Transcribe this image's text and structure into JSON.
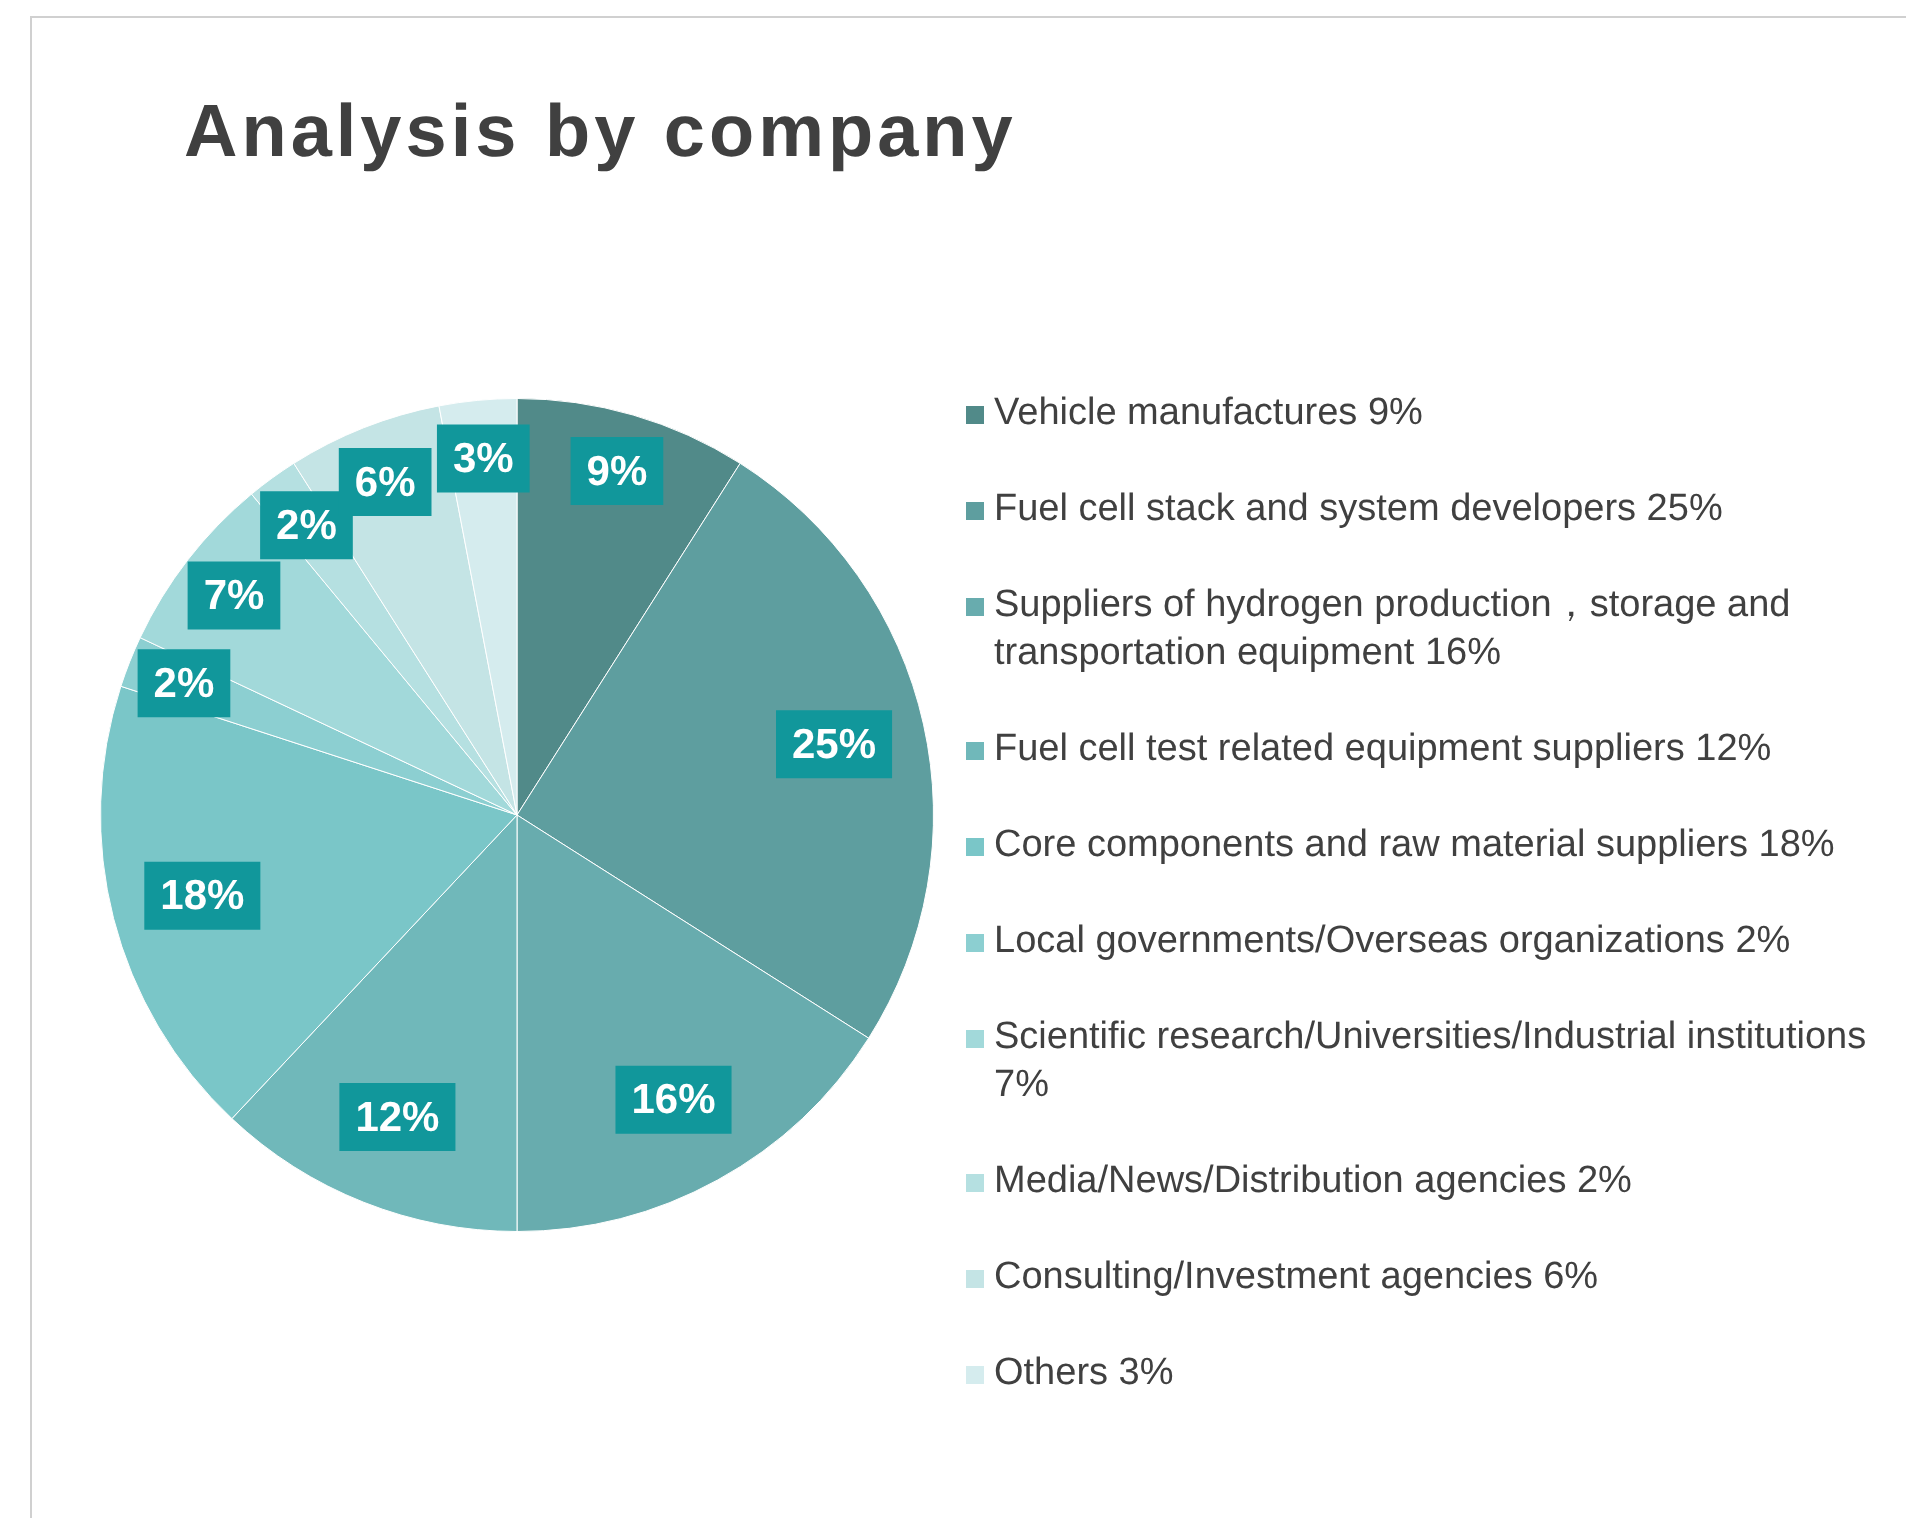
{
  "chart_data": {
    "type": "pie",
    "title": "Analysis by company",
    "categories": [
      "Vehicle manufactures 9%",
      "Fuel cell stack and system developers  25%",
      "Suppliers of hydrogen production，storage and transportation equipment 16%",
      "Fuel cell test related equipment suppliers 12%",
      "Core components and raw material suppliers 18%",
      "Local governments/Overseas organizations 2%",
      "Scientific research/Universities/Industrial institutions 7%",
      "Media/News/Distribution agencies 2%",
      "Consulting/Investment agencies 6%",
      "Others 3%"
    ],
    "values": [
      9,
      25,
      16,
      12,
      18,
      2,
      7,
      2,
      6,
      3
    ],
    "value_labels": [
      "9%",
      "25%",
      "16%",
      "12%",
      "18%",
      "2%",
      "7%",
      "2%",
      "6%",
      "3%"
    ],
    "colors": [
      "#518a89",
      "#5e9e9f",
      "#68acae",
      "#70b8ba",
      "#7ac6c8",
      "#8ccfd1",
      "#a2d9da",
      "#b5e0e1",
      "#c4e4e5",
      "#d5ecee"
    ],
    "legend": "right"
  }
}
